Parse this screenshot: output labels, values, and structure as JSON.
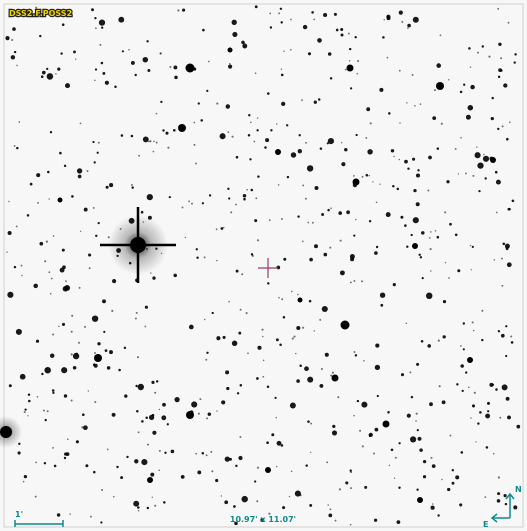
{
  "image": {
    "survey_label": "DSS2.F.POSS2",
    "field_size": "10.97' x 11.07'",
    "scale_label": "1'",
    "compass": {
      "north": "N",
      "east": "E"
    }
  }
}
